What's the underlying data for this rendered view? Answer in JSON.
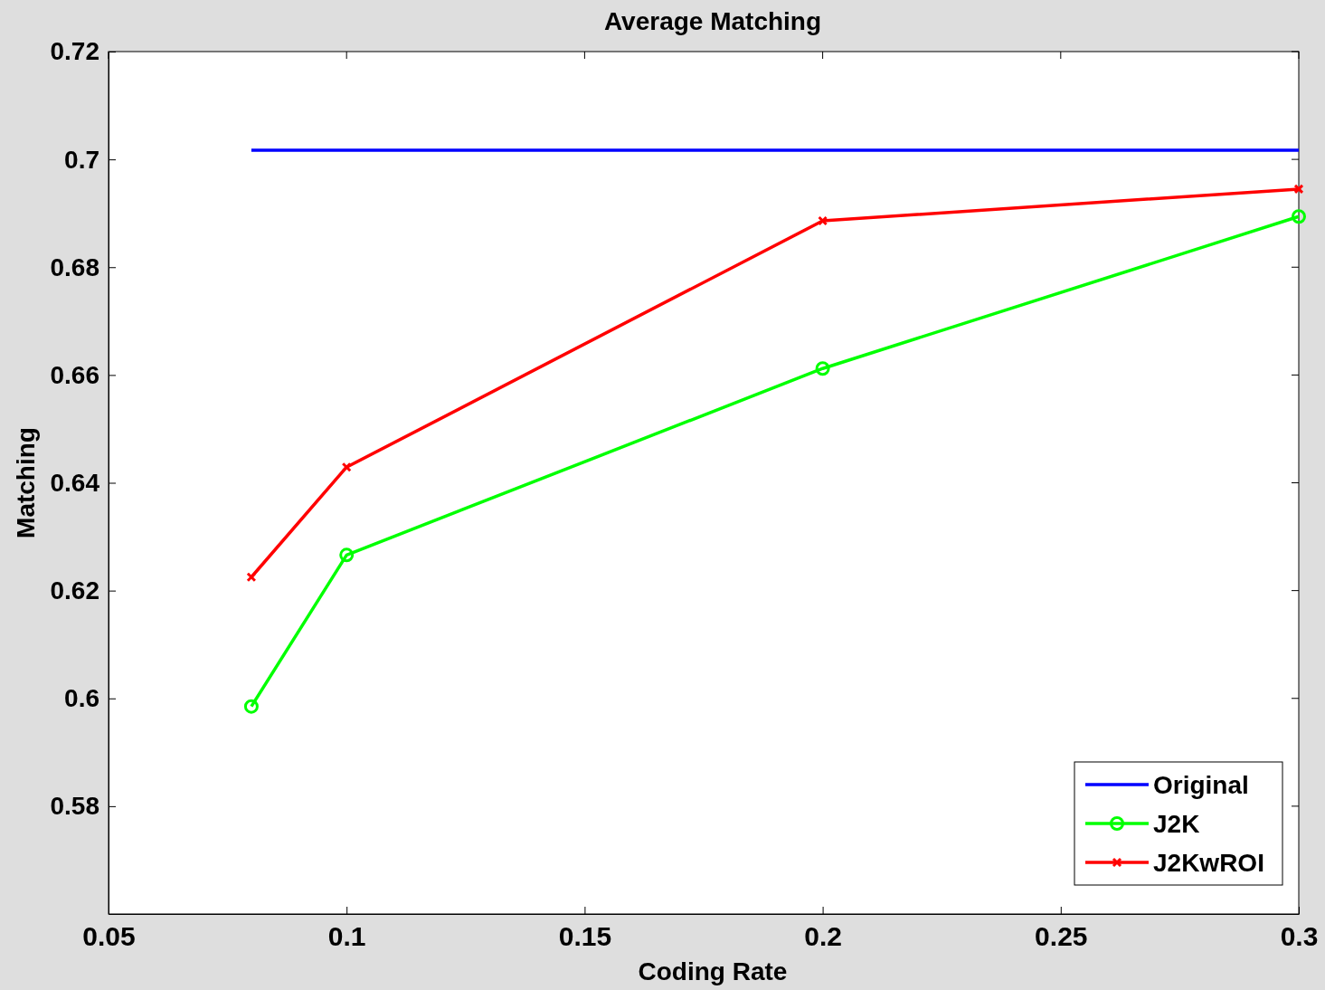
{
  "chart_data": {
    "type": "line",
    "title": "Average Matching",
    "xlabel": "Coding Rate",
    "ylabel": "Matching",
    "x": [
      0.08,
      0.1,
      0.2,
      0.3
    ],
    "series": [
      {
        "name": "Original",
        "color": "#0000ff",
        "values": [
          0.7017,
          0.7017,
          0.7017,
          0.7017
        ],
        "marker": "none"
      },
      {
        "name": "J2K",
        "color": "#00ff00",
        "values": [
          0.5985,
          0.6266,
          0.6612,
          0.6894
        ],
        "marker": "circle"
      },
      {
        "name": "J2KwROI",
        "color": "#ff0000",
        "values": [
          0.6225,
          0.6429,
          0.6886,
          0.6945
        ],
        "marker": "cross"
      }
    ],
    "xlim": [
      0.05,
      0.3
    ],
    "xticks": [
      0.05,
      0.1,
      0.15,
      0.2,
      0.25,
      0.3
    ],
    "ylim": [
      0.56,
      0.72
    ],
    "yticks": [
      0.58,
      0.6,
      0.62,
      0.64,
      0.66,
      0.68,
      0.7,
      0.72
    ],
    "grid": false,
    "legend": "bottom right",
    "line_style": "solid"
  }
}
